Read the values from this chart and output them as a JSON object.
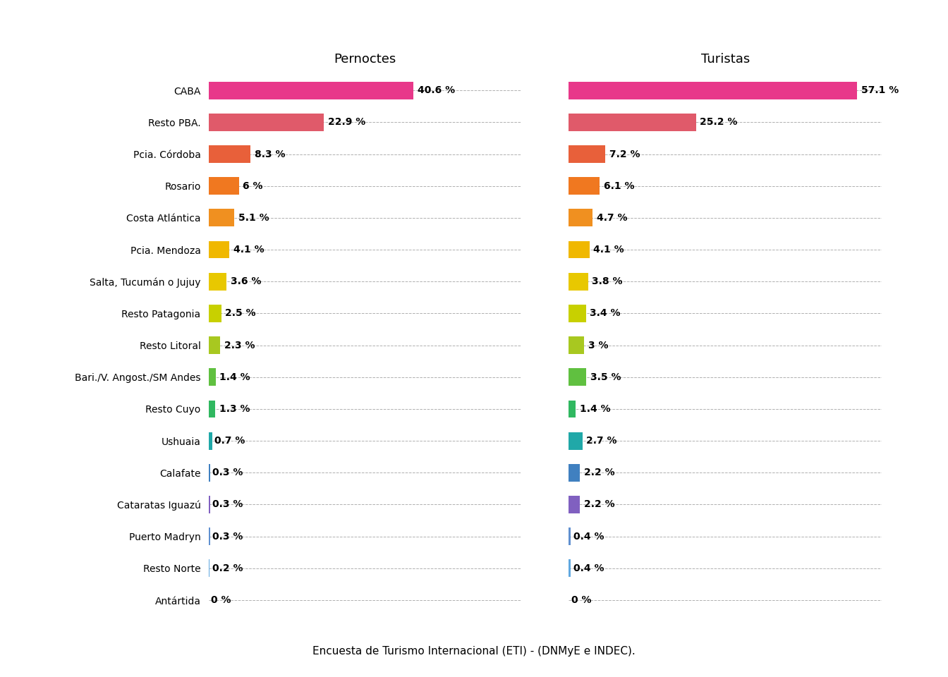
{
  "categories": [
    "CABA",
    "Resto PBA.",
    "Pcia. Córdoba",
    "Rosario",
    "Costa Atlántica",
    "Pcia. Mendoza",
    "Salta, Tucumán o Jujuy",
    "Resto Patagonia",
    "Resto Litoral",
    "Bari./V. Angost./SM Andes",
    "Resto Cuyo",
    "Ushuaia",
    "Calafate",
    "Cataratas Iguazú",
    "Puerto Madryn",
    "Resto Norte",
    "Antártida"
  ],
  "pernoctes": [
    40.6,
    22.9,
    8.3,
    6.0,
    5.1,
    4.1,
    3.6,
    2.5,
    2.3,
    1.4,
    1.3,
    0.7,
    0.3,
    0.3,
    0.3,
    0.2,
    0.0
  ],
  "turistas": [
    57.1,
    25.2,
    7.2,
    6.1,
    4.7,
    4.1,
    3.8,
    3.4,
    3.0,
    3.5,
    1.4,
    2.7,
    2.2,
    2.2,
    0.4,
    0.4,
    0.0
  ],
  "pernoctes_labels": [
    "40.6 %",
    "22.9 %",
    "8.3 %",
    "6 %",
    "5.1 %",
    "4.1 %",
    "3.6 %",
    "2.5 %",
    "2.3 %",
    "1.4 %",
    "1.3 %",
    "0.7 %",
    "0.3 %",
    "0.3 %",
    "0.3 %",
    "0.2 %",
    "0 %"
  ],
  "turistas_labels": [
    "57.1 %",
    "25.2 %",
    "7.2 %",
    "6.1 %",
    "4.7 %",
    "4.1 %",
    "3.8 %",
    "3.4 %",
    "3 %",
    "3.5 %",
    "1.4 %",
    "2.7 %",
    "2.2 %",
    "2.2 %",
    "0.4 %",
    "0.4 %",
    "0 %"
  ],
  "bar_colors": [
    "#e8388a",
    "#e05a6a",
    "#e8603a",
    "#f07820",
    "#f09020",
    "#f0b800",
    "#e8c800",
    "#c8d000",
    "#a8c820",
    "#60c040",
    "#30b860",
    "#20a8a8",
    "#4080c0",
    "#8060c0",
    "#6090d0",
    "#60a8e0",
    "#d0d0d0"
  ],
  "title_left": "Pernoctes",
  "title_right": "Turistas",
  "footer": "Encuesta de Turismo Internacional (ETI) - (DNMyE e INDEC).",
  "background_color": "#ffffff",
  "xlim_left": 62,
  "xlim_right": 62,
  "label_fontsize": 10,
  "category_fontsize": 10,
  "title_fontsize": 13
}
